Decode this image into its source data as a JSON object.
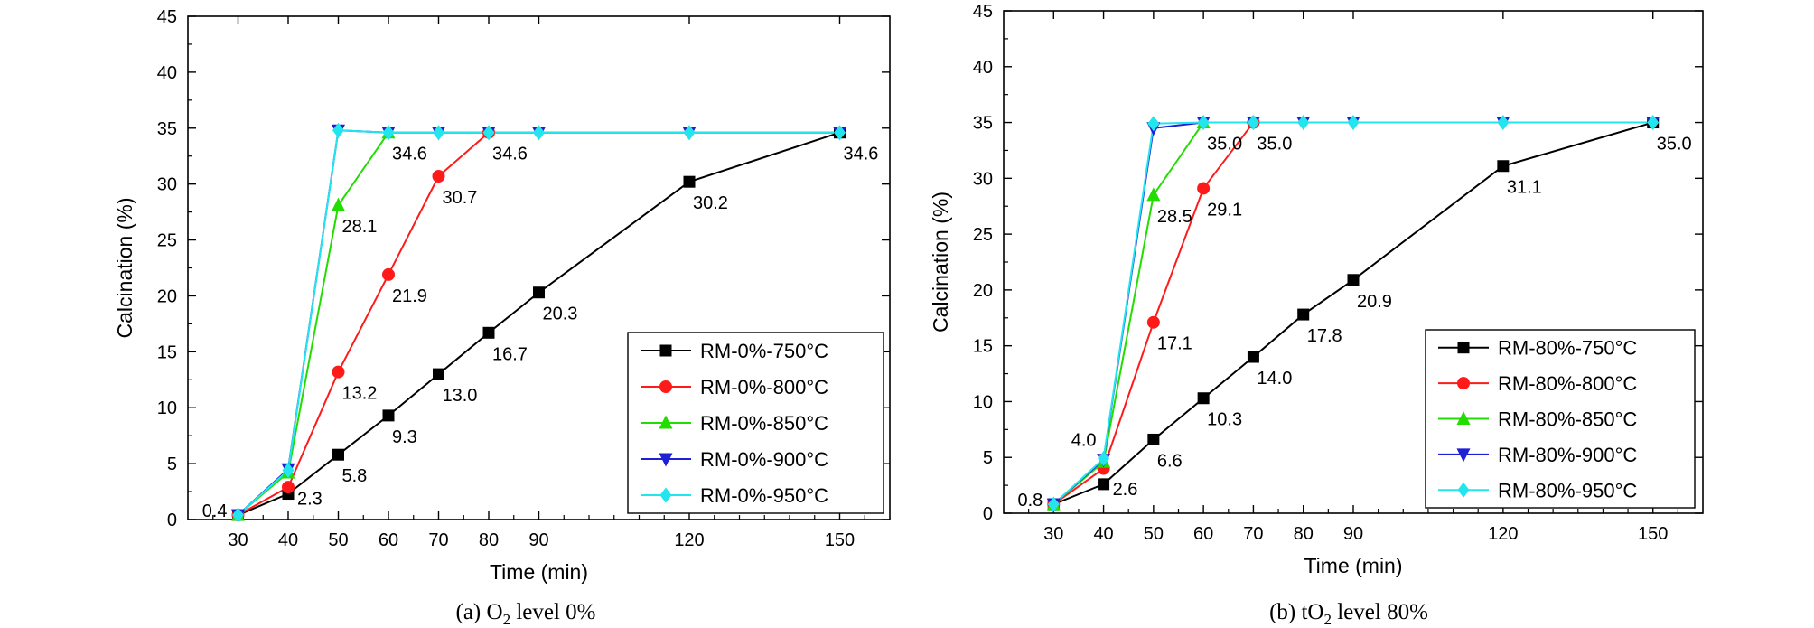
{
  "chart_data": [
    {
      "type": "line",
      "title": "",
      "xlabel": "Time (min)",
      "ylabel": "Calcination (%)",
      "caption": {
        "prefix": "(a) O",
        "sub": "2",
        "suffix": " level 0%"
      },
      "xlim": [
        20,
        160
      ],
      "ylim": [
        0,
        45
      ],
      "xticks": [
        30,
        40,
        50,
        60,
        70,
        80,
        90,
        120,
        150
      ],
      "yticks": [
        0,
        5,
        10,
        15,
        20,
        25,
        30,
        35,
        40,
        45
      ],
      "legend_position": "bottom-right",
      "series": [
        {
          "name": "RM-0%-750°C",
          "color": "#000000",
          "marker": "square",
          "x": [
            30,
            40,
            50,
            60,
            70,
            80,
            90,
            120,
            150
          ],
          "values": [
            0.4,
            2.3,
            5.8,
            9.3,
            13.0,
            16.7,
            20.3,
            30.2,
            34.6
          ]
        },
        {
          "name": "RM-0%-800°C",
          "color": "#ff1a1a",
          "marker": "circle",
          "x": [
            30,
            40,
            50,
            60,
            70,
            80
          ],
          "values": [
            0.4,
            2.9,
            13.2,
            21.9,
            30.7,
            34.6
          ]
        },
        {
          "name": "RM-0%-850°C",
          "color": "#22dd00",
          "marker": "triangle-up",
          "x": [
            30,
            40,
            50,
            60
          ],
          "values": [
            0.4,
            4.2,
            28.1,
            34.6
          ]
        },
        {
          "name": "RM-0%-900°C",
          "color": "#1f1fd6",
          "marker": "triangle-down",
          "x": [
            30,
            40,
            50,
            60,
            70,
            80,
            90,
            120,
            150
          ],
          "values": [
            0.4,
            4.5,
            34.8,
            34.6,
            34.6,
            34.6,
            34.6,
            34.6,
            34.6
          ]
        },
        {
          "name": "RM-0%-950°C",
          "color": "#22e5ee",
          "marker": "diamond",
          "x": [
            30,
            40,
            50,
            60,
            70,
            80,
            90,
            120,
            150
          ],
          "values": [
            0.4,
            4.4,
            34.8,
            34.6,
            34.6,
            34.6,
            34.6,
            34.6,
            34.6
          ]
        }
      ],
      "annotations": [
        {
          "text": "0.4",
          "x": 30,
          "y": 0.4,
          "pos": "left"
        },
        {
          "text": "2.3",
          "x": 40,
          "y": 2.3,
          "pos": "right"
        },
        {
          "text": "5.8",
          "x": 50,
          "y": 5.8,
          "pos": "below"
        },
        {
          "text": "9.3",
          "x": 60,
          "y": 9.3,
          "pos": "below"
        },
        {
          "text": "13.0",
          "x": 70,
          "y": 13.0,
          "pos": "below"
        },
        {
          "text": "16.7",
          "x": 80,
          "y": 16.7,
          "pos": "below"
        },
        {
          "text": "20.3",
          "x": 90,
          "y": 20.3,
          "pos": "below"
        },
        {
          "text": "30.2",
          "x": 120,
          "y": 30.2,
          "pos": "below"
        },
        {
          "text": "34.6",
          "x": 150,
          "y": 34.6,
          "pos": "below"
        },
        {
          "text": "13.2",
          "x": 50,
          "y": 13.2,
          "pos": "below"
        },
        {
          "text": "21.9",
          "x": 60,
          "y": 21.9,
          "pos": "below"
        },
        {
          "text": "30.7",
          "x": 70,
          "y": 30.7,
          "pos": "below"
        },
        {
          "text": "34.6",
          "x": 80,
          "y": 34.6,
          "pos": "below"
        },
        {
          "text": "28.1",
          "x": 50,
          "y": 28.1,
          "pos": "below"
        },
        {
          "text": "34.6",
          "x": 60,
          "y": 34.6,
          "pos": "below"
        }
      ]
    },
    {
      "type": "line",
      "title": "",
      "xlabel": "Time (min)",
      "ylabel": "Calcination (%)",
      "caption": {
        "prefix": "(b) tO",
        "sub": "2",
        "suffix": " level 80%"
      },
      "xlim": [
        20,
        160
      ],
      "ylim": [
        0,
        45
      ],
      "xticks": [
        30,
        40,
        50,
        60,
        70,
        80,
        90,
        120,
        150
      ],
      "yticks": [
        0,
        5,
        10,
        15,
        20,
        25,
        30,
        35,
        40,
        45
      ],
      "legend_position": "bottom-right",
      "series": [
        {
          "name": "RM-80%-750°C",
          "color": "#000000",
          "marker": "square",
          "x": [
            30,
            40,
            50,
            60,
            70,
            80,
            90,
            120,
            150
          ],
          "values": [
            0.8,
            2.6,
            6.6,
            10.3,
            14.0,
            17.8,
            20.9,
            31.1,
            35.0
          ]
        },
        {
          "name": "RM-80%-800°C",
          "color": "#ff1a1a",
          "marker": "circle",
          "x": [
            30,
            40,
            50,
            60,
            70
          ],
          "values": [
            0.8,
            4.0,
            17.1,
            29.1,
            35.0
          ]
        },
        {
          "name": "RM-80%-850°C",
          "color": "#22dd00",
          "marker": "triangle-up",
          "x": [
            30,
            40,
            50,
            60
          ],
          "values": [
            0.8,
            4.6,
            28.5,
            35.0
          ]
        },
        {
          "name": "RM-80%-900°C",
          "color": "#1f1fd6",
          "marker": "triangle-down",
          "x": [
            30,
            40,
            50,
            60,
            70,
            80,
            90,
            120,
            150
          ],
          "values": [
            0.8,
            4.8,
            34.5,
            35.0,
            35.0,
            35.0,
            35.0,
            35.0,
            35.0
          ]
        },
        {
          "name": "RM-80%-950°C",
          "color": "#22e5ee",
          "marker": "diamond",
          "x": [
            30,
            40,
            50,
            60,
            70,
            80,
            90,
            120,
            150
          ],
          "values": [
            0.8,
            4.9,
            34.9,
            35.0,
            35.0,
            35.0,
            35.0,
            35.0,
            35.0
          ]
        }
      ],
      "annotations": [
        {
          "text": "0.8",
          "x": 30,
          "y": 0.8,
          "pos": "left"
        },
        {
          "text": "4.0",
          "x": 40,
          "y": 4.9,
          "pos": "upleft"
        },
        {
          "text": "2.6",
          "x": 40,
          "y": 2.6,
          "pos": "right"
        },
        {
          "text": "6.6",
          "x": 50,
          "y": 6.6,
          "pos": "below"
        },
        {
          "text": "10.3",
          "x": 60,
          "y": 10.3,
          "pos": "below"
        },
        {
          "text": "14.0",
          "x": 70,
          "y": 14.0,
          "pos": "below"
        },
        {
          "text": "17.8",
          "x": 80,
          "y": 17.8,
          "pos": "below"
        },
        {
          "text": "20.9",
          "x": 90,
          "y": 20.9,
          "pos": "below"
        },
        {
          "text": "31.1",
          "x": 120,
          "y": 31.1,
          "pos": "below"
        },
        {
          "text": "35.0",
          "x": 150,
          "y": 35.0,
          "pos": "below"
        },
        {
          "text": "17.1",
          "x": 50,
          "y": 17.1,
          "pos": "below"
        },
        {
          "text": "29.1",
          "x": 60,
          "y": 29.1,
          "pos": "below"
        },
        {
          "text": "35.0",
          "x": 70,
          "y": 35.0,
          "pos": "below"
        },
        {
          "text": "28.5",
          "x": 50,
          "y": 28.5,
          "pos": "below"
        },
        {
          "text": "35.0",
          "x": 60,
          "y": 35.0,
          "pos": "below"
        }
      ]
    }
  ]
}
